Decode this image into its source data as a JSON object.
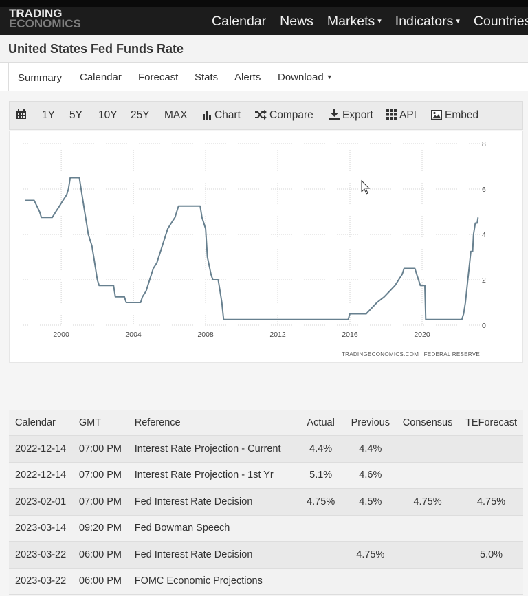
{
  "logo": {
    "line1": "TRADING",
    "line2": "ECONOMICS"
  },
  "nav": [
    {
      "label": "Calendar",
      "dropdown": false
    },
    {
      "label": "News",
      "dropdown": false
    },
    {
      "label": "Markets",
      "dropdown": true
    },
    {
      "label": "Indicators",
      "dropdown": true
    },
    {
      "label": "Countries",
      "dropdown": false
    }
  ],
  "page_title": "United States Fed Funds Rate",
  "tabs": [
    {
      "label": "Summary",
      "active": true
    },
    {
      "label": "Calendar"
    },
    {
      "label": "Forecast"
    },
    {
      "label": "Stats"
    },
    {
      "label": "Alerts"
    },
    {
      "label": "Download",
      "dropdown": true
    }
  ],
  "toolbar": {
    "ranges": [
      "1Y",
      "5Y",
      "10Y",
      "25Y",
      "MAX"
    ],
    "chart_label": "Chart",
    "compare_label": "Compare",
    "export_label": "Export",
    "api_label": "API",
    "embed_label": "Embed"
  },
  "chart_data": {
    "type": "line",
    "series": [
      {
        "points": [
          [
            1998.0,
            5.5
          ],
          [
            1998.5,
            5.5
          ],
          [
            1998.8,
            5.0
          ],
          [
            1998.9,
            4.75
          ],
          [
            1999.5,
            4.75
          ],
          [
            1999.7,
            5.0
          ],
          [
            1999.9,
            5.25
          ],
          [
            2000.1,
            5.5
          ],
          [
            2000.3,
            5.75
          ],
          [
            2000.4,
            6.0
          ],
          [
            2000.5,
            6.5
          ],
          [
            2001.0,
            6.5
          ],
          [
            2001.1,
            6.0
          ],
          [
            2001.2,
            5.5
          ],
          [
            2001.3,
            5.0
          ],
          [
            2001.4,
            4.5
          ],
          [
            2001.5,
            4.0
          ],
          [
            2001.6,
            3.75
          ],
          [
            2001.7,
            3.5
          ],
          [
            2001.8,
            3.0
          ],
          [
            2001.9,
            2.5
          ],
          [
            2002.0,
            2.0
          ],
          [
            2002.1,
            1.75
          ],
          [
            2002.9,
            1.75
          ],
          [
            2003.0,
            1.25
          ],
          [
            2003.5,
            1.25
          ],
          [
            2003.6,
            1.0
          ],
          [
            2004.4,
            1.0
          ],
          [
            2004.5,
            1.25
          ],
          [
            2004.7,
            1.5
          ],
          [
            2004.8,
            1.75
          ],
          [
            2004.9,
            2.0
          ],
          [
            2005.1,
            2.5
          ],
          [
            2005.3,
            2.75
          ],
          [
            2005.5,
            3.25
          ],
          [
            2005.7,
            3.75
          ],
          [
            2005.9,
            4.25
          ],
          [
            2006.1,
            4.5
          ],
          [
            2006.3,
            4.75
          ],
          [
            2006.4,
            5.0
          ],
          [
            2006.5,
            5.25
          ],
          [
            2007.7,
            5.25
          ],
          [
            2007.8,
            4.75
          ],
          [
            2007.9,
            4.5
          ],
          [
            2008.0,
            4.25
          ],
          [
            2008.1,
            3.0
          ],
          [
            2008.3,
            2.25
          ],
          [
            2008.4,
            2.0
          ],
          [
            2008.7,
            2.0
          ],
          [
            2008.8,
            1.5
          ],
          [
            2008.9,
            1.0
          ],
          [
            2009.0,
            0.25
          ],
          [
            2015.9,
            0.25
          ],
          [
            2016.0,
            0.5
          ],
          [
            2016.9,
            0.5
          ],
          [
            2017.2,
            0.75
          ],
          [
            2017.5,
            1.0
          ],
          [
            2017.9,
            1.25
          ],
          [
            2018.2,
            1.5
          ],
          [
            2018.5,
            1.75
          ],
          [
            2018.7,
            2.0
          ],
          [
            2018.9,
            2.25
          ],
          [
            2019.0,
            2.5
          ],
          [
            2019.6,
            2.5
          ],
          [
            2019.7,
            2.25
          ],
          [
            2019.8,
            2.0
          ],
          [
            2019.9,
            1.75
          ],
          [
            2020.15,
            1.75
          ],
          [
            2020.2,
            0.25
          ],
          [
            2022.2,
            0.25
          ],
          [
            2022.3,
            0.5
          ],
          [
            2022.4,
            1.0
          ],
          [
            2022.5,
            1.75
          ],
          [
            2022.6,
            2.5
          ],
          [
            2022.7,
            3.25
          ],
          [
            2022.8,
            3.25
          ],
          [
            2022.85,
            4.0
          ],
          [
            2022.95,
            4.5
          ],
          [
            2023.05,
            4.5
          ],
          [
            2023.1,
            4.75
          ]
        ]
      }
    ],
    "xlim": [
      1997.9,
      2023.2
    ],
    "ylim": [
      0,
      8
    ],
    "x_ticks": [
      "2000",
      "2004",
      "2008",
      "2012",
      "2016",
      "2020"
    ],
    "y_ticks": [
      "0",
      "2",
      "4",
      "6",
      "8"
    ],
    "grid": true,
    "line_color": "#67808f",
    "source_text": "TRADINGECONOMICS.COM  |  FEDERAL RESERVE"
  },
  "calendar_table": {
    "headers": [
      "Calendar",
      "GMT",
      "Reference",
      "Actual",
      "Previous",
      "Consensus",
      "TEForecast"
    ],
    "rows": [
      [
        "2022-12-14",
        "07:00 PM",
        "Interest Rate Projection - Current",
        "4.4%",
        "4.4%",
        "",
        ""
      ],
      [
        "2022-12-14",
        "07:00 PM",
        "Interest Rate Projection - 1st Yr",
        "5.1%",
        "4.6%",
        "",
        ""
      ],
      [
        "2023-02-01",
        "07:00 PM",
        "Fed Interest Rate Decision",
        "4.75%",
        "4.5%",
        "4.75%",
        "4.75%"
      ],
      [
        "2023-03-14",
        "09:20 PM",
        "Fed Bowman Speech",
        "",
        "",
        "",
        ""
      ],
      [
        "2023-03-22",
        "06:00 PM",
        "Fed Interest Rate Decision",
        "",
        "4.75%",
        "",
        "5.0%"
      ],
      [
        "2023-03-22",
        "06:00 PM",
        "FOMC Economic Projections",
        "",
        "",
        "",
        ""
      ]
    ]
  }
}
